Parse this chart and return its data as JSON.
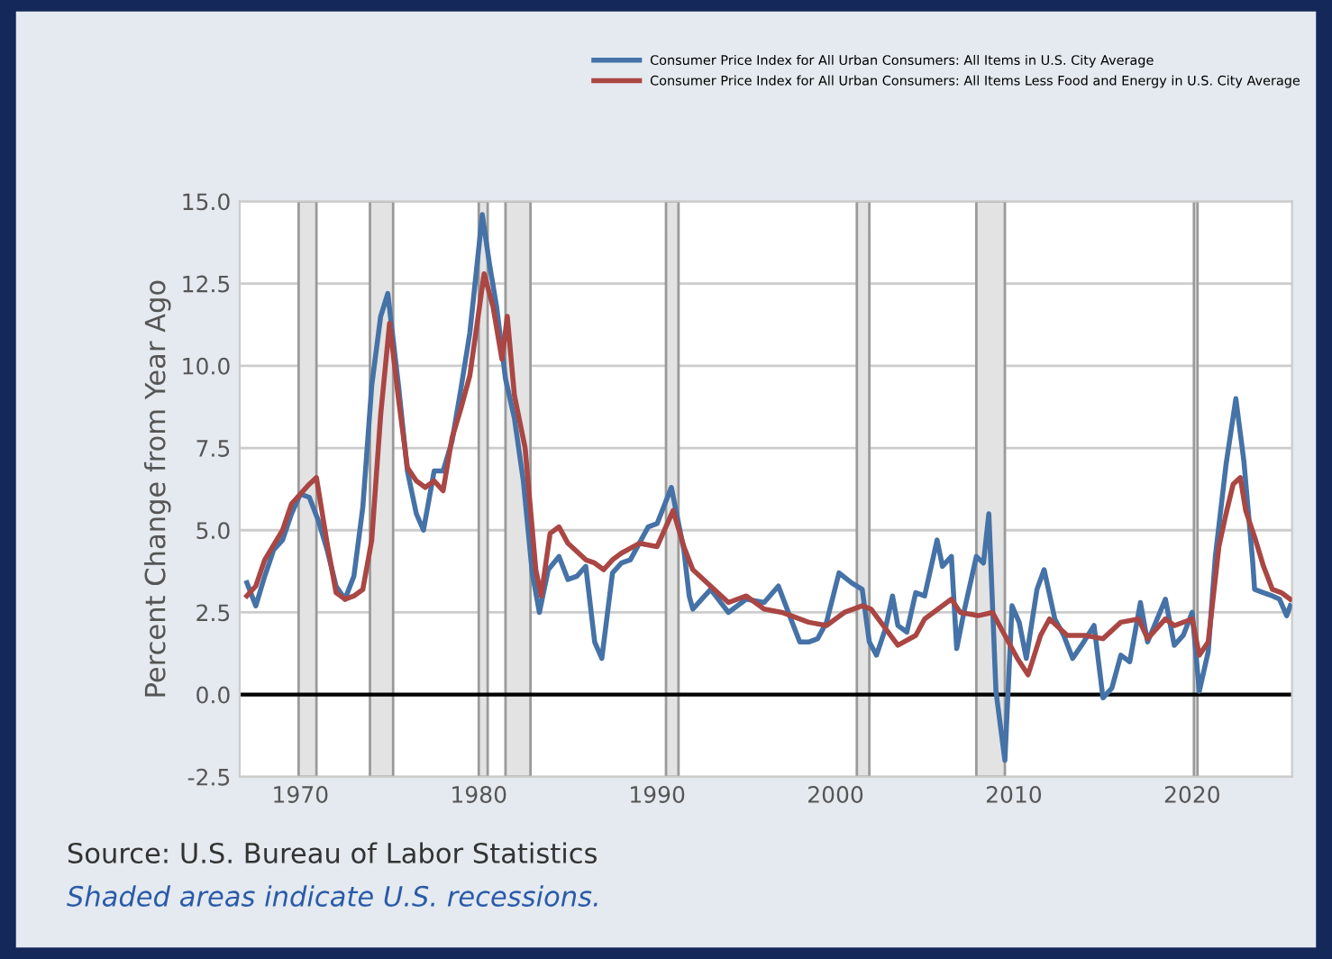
{
  "chart_data": {
    "type": "line",
    "ylabel": "Percent Change from Year Ago",
    "xlim": [
      1966.6,
      2025.6
    ],
    "xticks": [
      1970,
      1980,
      1990,
      2000,
      2010,
      2020
    ],
    "ylim": [
      -2.5,
      15
    ],
    "yticks": [
      {
        "value": -2.5,
        "label": "-2.5"
      },
      {
        "value": 0,
        "label": "0.0"
      },
      {
        "value": 2.5,
        "label": "2.5"
      },
      {
        "value": 5,
        "label": "5.0"
      },
      {
        "value": 7.5,
        "label": "7.5"
      },
      {
        "value": 10,
        "label": "10.0"
      },
      {
        "value": 12.5,
        "label": "12.5"
      },
      {
        "value": 15,
        "label": "15.0"
      }
    ],
    "grid": "y",
    "legend": "top",
    "line_style": "solid",
    "marker": "none",
    "series": [
      {
        "name": "Consumer Price Index for All Urban Consumers: All Items in U.S. City Average",
        "color": "#4572a7",
        "x": [
          1967.0,
          1967.5,
          1968,
          1968.5,
          1969,
          1969.5,
          1970,
          1970.5,
          1971,
          1971.5,
          1972,
          1972.5,
          1973,
          1973.5,
          1974,
          1974.5,
          1974.9,
          1975.5,
          1976,
          1976.5,
          1976.9,
          1977.5,
          1978,
          1978.5,
          1979,
          1979.5,
          1980.2,
          1980.6,
          1981,
          1981.5,
          1982,
          1982.5,
          1983,
          1983.4,
          1983.9,
          1984.5,
          1985,
          1985.5,
          1986,
          1986.5,
          1986.9,
          1987.5,
          1988,
          1988.5,
          1989,
          1989.5,
          1990,
          1990.8,
          1991.5,
          1991.8,
          1992,
          1993,
          1994,
          1995,
          1996,
          1996.8,
          1997.5,
          1998,
          1998.5,
          1999,
          1999.5,
          2000.2,
          2000.9,
          2001.5,
          2001.9,
          2002.3,
          2002.8,
          2003.2,
          2003.5,
          2004,
          2004.5,
          2005,
          2005.7,
          2006,
          2006.5,
          2006.8,
          2007.2,
          2007.9,
          2008.3,
          2008.6,
          2009,
          2009.5,
          2009.9,
          2010.3,
          2010.7,
          2011.3,
          2011.7,
          2012.3,
          2012.8,
          2013.3,
          2013.8,
          2014.5,
          2015.0,
          2015.5,
          2016,
          2016.5,
          2017.1,
          2017.5,
          2018.5,
          2019,
          2019.5,
          2020.0,
          2020.4,
          2020.9,
          2021.3,
          2021.9,
          2022.45,
          2022.9,
          2023.4,
          2023.5,
          2024,
          2024.5,
          2024.9,
          2025.3,
          2025.5
        ],
        "values": [
          3.4,
          2.7,
          3.6,
          4.4,
          4.7,
          5.5,
          6.1,
          6.0,
          5.3,
          4.4,
          3.3,
          2.9,
          3.6,
          5.7,
          9.4,
          11.5,
          12.2,
          9.4,
          6.8,
          5.5,
          5.0,
          6.8,
          6.8,
          7.7,
          9.3,
          11.0,
          14.6,
          13.1,
          11.8,
          9.6,
          8.4,
          6.5,
          3.7,
          2.5,
          3.8,
          4.2,
          3.5,
          3.6,
          3.9,
          1.6,
          1.1,
          3.7,
          4.0,
          4.1,
          4.6,
          5.1,
          5.2,
          6.3,
          4.4,
          3.0,
          2.6,
          3.2,
          2.5,
          2.9,
          2.8,
          3.3,
          2.3,
          1.6,
          1.6,
          1.7,
          2.2,
          3.7,
          3.4,
          3.2,
          1.6,
          1.2,
          2.0,
          3.0,
          2.1,
          1.9,
          3.1,
          3.0,
          4.7,
          3.9,
          4.2,
          1.4,
          2.5,
          4.2,
          4.0,
          5.5,
          0.1,
          -2.0,
          2.7,
          2.2,
          1.1,
          3.2,
          3.8,
          2.3,
          1.8,
          1.1,
          1.5,
          2.1,
          -0.1,
          0.2,
          1.2,
          1.0,
          2.8,
          1.6,
          2.9,
          1.5,
          1.8,
          2.5,
          0.1,
          1.3,
          4.2,
          7.0,
          9.0,
          7.1,
          4.0,
          3.2,
          3.1,
          3.0,
          2.9,
          2.4,
          2.7
        ]
      },
      {
        "name": "Consumer Price Index for All Urban Consumers: All Items Less Food and Energy in U.S. City Average",
        "color": "#aa4643",
        "x": [
          1967,
          1967.5,
          1968,
          1969,
          1969.5,
          1970.5,
          1970.9,
          1971.5,
          1972,
          1972.5,
          1973,
          1973.5,
          1974,
          1974.5,
          1975,
          1975.5,
          1976,
          1976.5,
          1977,
          1977.5,
          1978,
          1978.5,
          1979,
          1979.5,
          1980.3,
          1980.8,
          1981.3,
          1981.6,
          1982,
          1982.6,
          1983.2,
          1983.5,
          1984,
          1984.5,
          1985,
          1986,
          1986.5,
          1987,
          1987.5,
          1988,
          1989,
          1990,
          1990.9,
          1991.5,
          1992,
          1993,
          1994,
          1995,
          1996,
          1997,
          1998.5,
          1999.5,
          2000.5,
          2001.5,
          2002,
          2003.5,
          2004.5,
          2005,
          2006.5,
          2007,
          2008,
          2008.8,
          2009.5,
          2010.2,
          2010.8,
          2011.5,
          2012,
          2013,
          2014,
          2015,
          2016,
          2017,
          2017.5,
          2018.5,
          2019,
          2020,
          2020.4,
          2020.9,
          2021.5,
          2021.9,
          2022.3,
          2022.7,
          2023,
          2023.5,
          2024,
          2024.5,
          2025,
          2025.5
        ],
        "values": [
          3.0,
          3.3,
          4.1,
          5.0,
          5.8,
          6.4,
          6.6,
          4.6,
          3.1,
          2.9,
          3.0,
          3.2,
          4.7,
          8.5,
          11.3,
          9.0,
          6.9,
          6.5,
          6.3,
          6.5,
          6.2,
          7.8,
          8.7,
          9.7,
          12.8,
          11.8,
          10.2,
          11.5,
          9.1,
          7.5,
          3.8,
          3.0,
          4.9,
          5.1,
          4.6,
          4.1,
          4.0,
          3.8,
          4.1,
          4.3,
          4.6,
          4.5,
          5.6,
          4.5,
          3.8,
          3.3,
          2.8,
          3.0,
          2.6,
          2.5,
          2.2,
          2.1,
          2.5,
          2.7,
          2.6,
          1.5,
          1.8,
          2.3,
          2.9,
          2.5,
          2.4,
          2.5,
          1.8,
          1.1,
          0.6,
          1.8,
          2.3,
          1.8,
          1.8,
          1.7,
          2.2,
          2.3,
          1.7,
          2.3,
          2.1,
          2.3,
          1.2,
          1.6,
          4.5,
          5.5,
          6.4,
          6.6,
          5.6,
          4.8,
          3.9,
          3.2,
          3.1,
          2.9
        ]
      }
    ],
    "ref_lines": [
      {
        "axis": "y",
        "value": 0,
        "color": "#000000"
      }
    ],
    "bands": [
      {
        "axis": "x",
        "from": 1969.9,
        "to": 1970.9,
        "color": "#e3e3e3"
      },
      {
        "axis": "x",
        "from": 1973.9,
        "to": 1975.2,
        "color": "#e3e3e3"
      },
      {
        "axis": "x",
        "from": 1980.0,
        "to": 1980.5,
        "color": "#e3e3e3"
      },
      {
        "axis": "x",
        "from": 1981.5,
        "to": 1982.9,
        "color": "#e3e3e3"
      },
      {
        "axis": "x",
        "from": 1990.5,
        "to": 1991.2,
        "color": "#e3e3e3"
      },
      {
        "axis": "x",
        "from": 2001.2,
        "to": 2001.9,
        "color": "#e3e3e3"
      },
      {
        "axis": "x",
        "from": 2007.9,
        "to": 2009.5,
        "color": "#e3e3e3"
      },
      {
        "axis": "x",
        "from": 2020.1,
        "to": 2020.3,
        "color": "#e3e3e3"
      }
    ],
    "annotations": [
      "Source: U.S. Bureau of Labor Statistics",
      "Shaded areas indicate U.S. recessions."
    ]
  }
}
